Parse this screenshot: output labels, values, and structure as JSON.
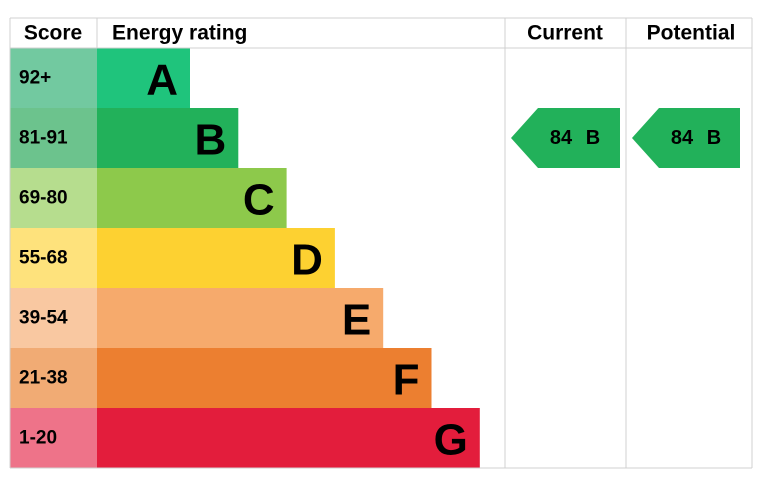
{
  "header": {
    "score": "Score",
    "energy_rating": "Energy rating",
    "current": "Current",
    "potential": "Potential"
  },
  "bands": [
    {
      "score": "92+",
      "letter": "A",
      "color": "#1fc47c",
      "score_color": "#72c9a0"
    },
    {
      "score": "81-91",
      "letter": "B",
      "color": "#22b15a",
      "score_color": "#6cc38d"
    },
    {
      "score": "69-80",
      "letter": "C",
      "color": "#8dc94b",
      "score_color": "#b6dd8e"
    },
    {
      "score": "55-68",
      "letter": "D",
      "color": "#fdd131",
      "score_color": "#fee27c"
    },
    {
      "score": "39-54",
      "letter": "E",
      "color": "#f6aa6c",
      "score_color": "#f9c8a1"
    },
    {
      "score": "21-38",
      "letter": "F",
      "color": "#ec7f30",
      "score_color": "#f1ab74"
    },
    {
      "score": "1-20",
      "letter": "G",
      "color": "#e31d3c",
      "score_color": "#ee7389"
    }
  ],
  "current": {
    "score": "84",
    "letter": "B",
    "color": "#22b15a"
  },
  "potential": {
    "score": "84",
    "letter": "B",
    "color": "#22b15a"
  }
}
